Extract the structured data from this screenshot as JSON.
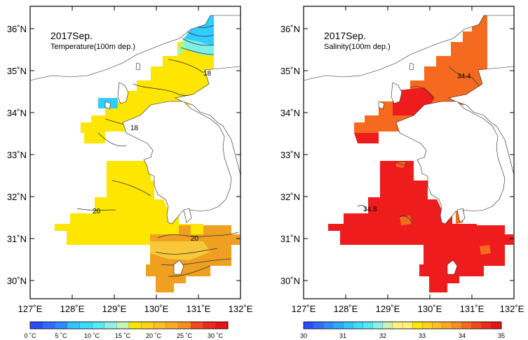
{
  "panels": [
    {
      "id": "temperature",
      "title": "2017Sep.",
      "subtitle": "Temperature(100m dep.)",
      "x_ticks": [
        "127˚E",
        "128˚E",
        "129˚E",
        "130˚E",
        "131˚E",
        "132˚E"
      ],
      "y_ticks": [
        "36˚N",
        "35˚N",
        "34˚N",
        "33˚N",
        "32˚N",
        "31˚N",
        "30˚N"
      ],
      "contour_labels": [
        "18",
        "18",
        "20",
        "20"
      ],
      "colorbar": {
        "labels": [
          "0 ˚C",
          "5 ˚C",
          "10 ˚C",
          "15 ˚C",
          "20 ˚C",
          "25 ˚C",
          "30 ˚C"
        ],
        "range": [
          0,
          32
        ]
      }
    },
    {
      "id": "salinity",
      "title": "2017Sep.",
      "subtitle": "Salinity(100m dep.)",
      "x_ticks": [
        "127˚E",
        "128˚E",
        "129˚E",
        "130˚E",
        "131˚E",
        "132˚E"
      ],
      "y_ticks": [
        "36˚N",
        "35˚N",
        "34˚N",
        "33˚N",
        "32˚N",
        "31˚N",
        "30˚N"
      ],
      "contour_labels": [
        "34.4",
        "34.8"
      ],
      "colorbar": {
        "labels": [
          "30",
          "31",
          "32",
          "33",
          "34",
          "35"
        ],
        "range": [
          30,
          35
        ]
      }
    }
  ],
  "colors": {
    "land": "#ffffff",
    "frame": "#000000",
    "temp_cold": "#33ccff",
    "temp_mid": "#ffe600",
    "temp_warm": "#f0a020",
    "sal_high": "#ee1c1c",
    "sal_mid": "#f56a1e"
  }
}
